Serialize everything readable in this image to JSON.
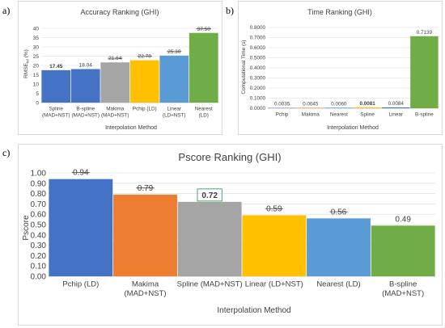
{
  "panels": {
    "a": "a)",
    "b": "b)",
    "c": "c)"
  },
  "chart_data": [
    {
      "id": "a",
      "type": "bar",
      "title": "Accuracy Ranking (GHI)",
      "xlabel": "Interpolation Method",
      "ylabel_main": "RMSE",
      "ylabel_sub": "rel",
      "ylabel_tail": " (%)",
      "categories": [
        [
          "Spline",
          "(MAD+NST)"
        ],
        [
          "B-spline",
          "(MAD+NST)"
        ],
        [
          "Makima",
          "(MAD+NST)"
        ],
        [
          "Pchip (LD)"
        ],
        [
          "Linear",
          "(LD+NST)"
        ],
        [
          "Nearest",
          "(LD)"
        ]
      ],
      "values": [
        17.45,
        18.04,
        21.64,
        22.78,
        25.3,
        37.5
      ],
      "labels": [
        "17.45",
        "18.04",
        "21.64",
        "22.78",
        "25.30",
        "37.50"
      ],
      "label_bold": [
        true,
        false,
        false,
        false,
        false,
        false
      ],
      "label_strike": [
        false,
        false,
        true,
        true,
        true,
        true
      ],
      "colors": [
        "#4472c4",
        "#4472c4",
        "#a5a5a5",
        "#ffc000",
        "#5b9bd5",
        "#70ad47"
      ],
      "ylim": [
        0,
        40
      ],
      "yticks": [
        "0",
        "5",
        "10",
        "15",
        "20",
        "25",
        "30",
        "35",
        "40"
      ],
      "grid": true
    },
    {
      "id": "b",
      "type": "bar",
      "title": "Time Ranking (GHI)",
      "xlabel": "Interpolation Method",
      "ylabel": "Computational Time (s)",
      "categories": [
        [
          "Pchip"
        ],
        [
          "Makima"
        ],
        [
          "Nearest"
        ],
        [
          "Spline"
        ],
        [
          "Linear"
        ],
        [
          "B-spline"
        ]
      ],
      "values": [
        0.0035,
        0.0045,
        0.006,
        0.0081,
        0.0084,
        0.7139
      ],
      "labels": [
        "0.0035",
        "0.0045",
        "0.0060",
        "0.0081",
        "0.0084",
        "0.7139"
      ],
      "label_bold": [
        false,
        false,
        false,
        true,
        false,
        false
      ],
      "label_strike": [
        false,
        false,
        false,
        false,
        false,
        false
      ],
      "colors": [
        "#4472c4",
        "#ed7d31",
        "#5b9bd5",
        "#ffc000",
        "#4472c4",
        "#70ad47"
      ],
      "ylim": [
        0,
        0.8
      ],
      "yticks": [
        "0.0000",
        "0.1000",
        "0.2000",
        "0.3000",
        "0.4000",
        "0.5000",
        "0.6000",
        "0.7000",
        "0.8000"
      ],
      "grid": true
    },
    {
      "id": "c",
      "type": "bar",
      "title": "Pscore Ranking (GHI)",
      "xlabel": "Interpolation Method",
      "ylabel": "Pscore",
      "categories": [
        [
          "Pchip (LD)"
        ],
        [
          "Makima",
          "(MAD+NST)"
        ],
        [
          "Spline (MAD+NST)"
        ],
        [
          "Linear (LD+NST)"
        ],
        [
          "Nearest (LD)"
        ],
        [
          "B-spline",
          "(MAD+NST)"
        ]
      ],
      "values": [
        0.94,
        0.79,
        0.72,
        0.59,
        0.56,
        0.49
      ],
      "labels": [
        "0.94",
        "0.79",
        "0.72",
        "0.59",
        "0.56",
        "0.49"
      ],
      "label_bold": [
        false,
        false,
        true,
        false,
        false,
        false
      ],
      "label_strike": [
        true,
        true,
        false,
        true,
        true,
        false
      ],
      "label_boxed": [
        false,
        false,
        true,
        false,
        false,
        false
      ],
      "colors": [
        "#4472c4",
        "#ed7d31",
        "#a5a5a5",
        "#ffc000",
        "#5b9bd5",
        "#70ad47"
      ],
      "ylim": [
        0,
        1.0
      ],
      "yticks": [
        "0.00",
        "0.10",
        "0.20",
        "0.30",
        "0.40",
        "0.50",
        "0.60",
        "0.70",
        "0.80",
        "0.90",
        "1.00"
      ],
      "grid": true
    }
  ]
}
